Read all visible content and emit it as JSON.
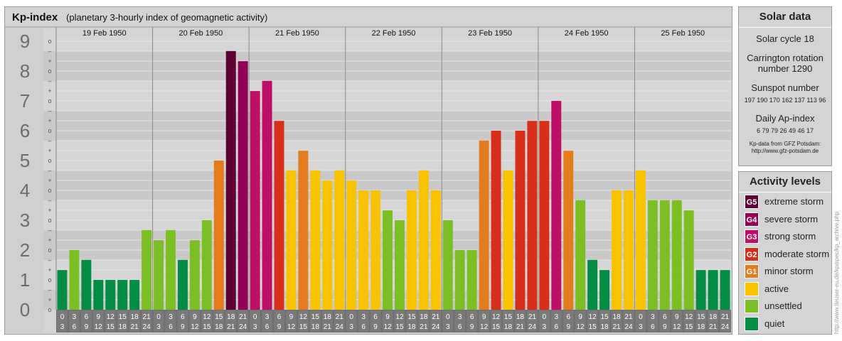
{
  "header": {
    "title": "Kp-index",
    "subtitle": "(planetary 3-hourly index of geomagnetic activity)"
  },
  "chart_data": {
    "type": "bar",
    "title": "Kp-index",
    "subtitle": "(planetary 3-hourly index of geomagnetic activity)",
    "days": [
      "19 Feb 1950",
      "20 Feb 1950",
      "21 Feb 1950",
      "22 Feb 1950",
      "23 Feb 1950",
      "24 Feb 1950",
      "25 Feb 1950"
    ],
    "interval_top": [
      "0",
      "3",
      "6",
      "9",
      "12",
      "15",
      "18",
      "21"
    ],
    "interval_bottom": [
      "3",
      "6",
      "9",
      "12",
      "15",
      "18",
      "21",
      "24"
    ],
    "y_ticks": [
      "0",
      "1",
      "2",
      "3",
      "4",
      "5",
      "6",
      "7",
      "8",
      "9"
    ],
    "minor_labels": [
      "o",
      "+",
      "–",
      "o",
      "+",
      "–",
      "o",
      "+",
      "–",
      "o",
      "+",
      "–",
      "o",
      "+",
      "–",
      "o",
      "+",
      "–",
      "o",
      "+",
      "–",
      "o",
      "+",
      "–",
      "o",
      "+",
      "–",
      "o"
    ],
    "ylim": [
      0,
      9.33
    ],
    "values": [
      1.33,
      2.0,
      1.67,
      1.0,
      1.0,
      1.0,
      1.0,
      2.67,
      2.33,
      2.67,
      1.67,
      2.33,
      3.0,
      5.0,
      8.67,
      8.33,
      7.33,
      7.67,
      6.33,
      4.67,
      5.33,
      4.67,
      4.33,
      4.67,
      4.33,
      4.0,
      4.0,
      3.33,
      3.0,
      4.0,
      4.67,
      4.0,
      3.0,
      2.0,
      2.0,
      5.67,
      6.0,
      4.67,
      6.0,
      6.33,
      6.33,
      7.0,
      5.33,
      3.67,
      1.67,
      1.33,
      4.0,
      4.0,
      4.67,
      3.67,
      3.67,
      3.67,
      3.33,
      1.33,
      1.33,
      1.33
    ],
    "colors": {
      "G5": "#5e0031",
      "G4": "#930057",
      "G3": "#bc0f65",
      "G2": "#d6301a",
      "G1": "#e47c1e",
      "active": "#f9c300",
      "unsettled": "#7cbf25",
      "quiet": "#048c45"
    },
    "grid": true
  },
  "solar": {
    "title": "Solar data",
    "cycle": "Solar cycle 18",
    "carrington_line1": "Carrington rotation",
    "carrington_line2": "number 1290",
    "sunspot_title": "Sunspot number",
    "sunspot_values": "197 190 170 162 137 113  96",
    "ap_title": "Daily Ap-index",
    "ap_values": "6   79  79  26  49  46  17",
    "credit1": "Kp-data from GFZ Potsdam:",
    "credit2": "http://www.gfz-potsdam.de"
  },
  "levels": {
    "title": "Activity levels",
    "items": [
      {
        "badge": "G5",
        "label": "extreme storm",
        "color": "#5e0031"
      },
      {
        "badge": "G4",
        "label": "severe storm",
        "color": "#930057"
      },
      {
        "badge": "G3",
        "label": "strong storm",
        "color": "#bc0f65"
      },
      {
        "badge": "G2",
        "label": "moderate storm",
        "color": "#d6301a"
      },
      {
        "badge": "G1",
        "label": "minor storm",
        "color": "#e47c1e"
      },
      {
        "badge": "",
        "label": "active",
        "color": "#f9c300"
      },
      {
        "badge": "",
        "label": "unsettled",
        "color": "#7cbf25"
      },
      {
        "badge": "",
        "label": "quiet",
        "color": "#048c45"
      }
    ]
  },
  "watermark": "http://www.tleuser-eu.de/kp/spec/kp_archive.php"
}
